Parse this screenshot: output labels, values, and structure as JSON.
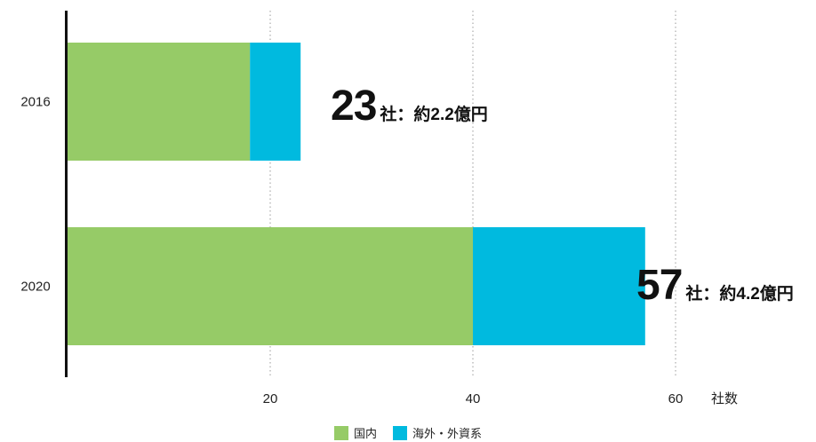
{
  "chart_data": {
    "type": "bar",
    "orientation": "horizontal",
    "stacked": true,
    "categories": [
      "2016",
      "2020"
    ],
    "series": [
      {
        "name": "国内",
        "values": [
          18,
          40
        ],
        "color": "#96CB67"
      },
      {
        "name": "海外・外資系",
        "values": [
          5,
          17
        ],
        "color": "#00BADF"
      }
    ],
    "annotations": [
      {
        "category": "2016",
        "number": "23",
        "suffix": "社：約2.2億円"
      },
      {
        "category": "2020",
        "number": "57",
        "suffix": "社：約4.2億円"
      }
    ],
    "x_ticks": [
      20,
      40,
      60
    ],
    "xlim": [
      0,
      64
    ],
    "xlabel": "社数",
    "ylabel": "",
    "grid": "vertical dotted",
    "legend_position": "bottom-center"
  }
}
